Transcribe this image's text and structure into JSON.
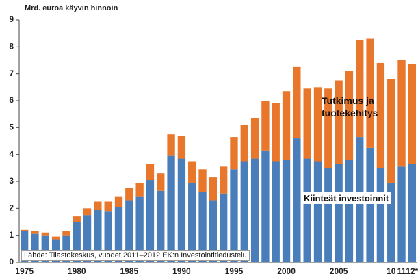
{
  "chart_data": {
    "type": "stacked_bar",
    "y_label": "Mrd. euroa käyvin hinnoin",
    "source": "Lähde: Tilastokeskus, vuodet 2011–2012 EK:n Investointitiedustelu",
    "categories": [
      "1975",
      null,
      null,
      null,
      null,
      "1980",
      null,
      null,
      null,
      null,
      "1985",
      null,
      null,
      null,
      null,
      "1990",
      null,
      null,
      null,
      null,
      "1995",
      null,
      null,
      null,
      null,
      "2000",
      null,
      null,
      null,
      null,
      "2005",
      null,
      null,
      null,
      null,
      "10",
      "11",
      "12*"
    ],
    "series": [
      {
        "name": "Kiinteät investoinnit",
        "color": "#4a7ebb",
        "values": [
          1.15,
          1.05,
          1.0,
          0.85,
          1.0,
          1.5,
          1.75,
          1.95,
          1.9,
          2.05,
          2.3,
          2.45,
          3.05,
          2.65,
          3.95,
          3.85,
          2.95,
          2.6,
          2.3,
          2.55,
          3.45,
          3.75,
          3.85,
          4.15,
          3.75,
          3.8,
          4.6,
          3.85,
          3.75,
          3.5,
          3.65,
          3.8,
          4.65,
          4.25,
          3.5,
          2.95,
          3.55,
          3.65
        ]
      },
      {
        "name": "Tutkimus ja tuotekehitys",
        "color": "#e8762b",
        "values": [
          0.05,
          0.1,
          0.1,
          0.1,
          0.15,
          0.2,
          0.25,
          0.3,
          0.35,
          0.4,
          0.45,
          0.5,
          0.6,
          0.65,
          0.8,
          0.85,
          0.8,
          0.85,
          0.85,
          1.0,
          1.2,
          1.35,
          1.5,
          1.85,
          2.15,
          2.55,
          2.65,
          2.6,
          2.75,
          2.95,
          3.1,
          3.3,
          3.6,
          4.05,
          3.9,
          3.85,
          3.95,
          3.7
        ]
      }
    ],
    "ylim": [
      0,
      9
    ],
    "yticks": [
      0,
      1,
      2,
      3,
      4,
      5,
      6,
      7,
      8,
      9
    ]
  }
}
